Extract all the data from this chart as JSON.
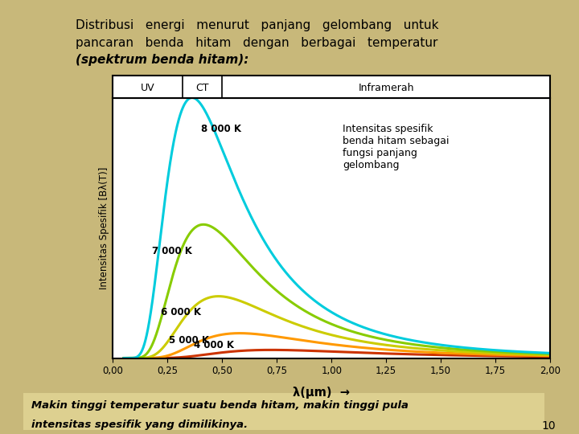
{
  "temperatures": [
    4000,
    5000,
    6000,
    7000,
    8000
  ],
  "colors": [
    "#cc3300",
    "#ff9900",
    "#cccc00",
    "#88cc00",
    "#00ccdd"
  ],
  "xlim": [
    0.0,
    2.0
  ],
  "ylim": [
    0.0,
    1.0
  ],
  "xticks": [
    0.0,
    0.25,
    0.5,
    0.75,
    1.0,
    1.25,
    1.5,
    1.75,
    2.0
  ],
  "xtick_labels": [
    "0,00",
    "0,25",
    "0,50",
    "0,75",
    "1,00",
    "1,25",
    "1,50",
    "1,75",
    "2,00"
  ],
  "uv_boundary": 0.32,
  "ct_boundary": 0.5,
  "uv_label": "UV",
  "ct_label": "CT",
  "ir_label": "Inframerah",
  "ylabel": "Intensitas Spesifik [Bλ(T)]",
  "xlabel_text": "λ(μm)",
  "annotation": "Intensitas spesifik\nbenda hitam sebagai\nfungsi panjang\ngelombang",
  "label_8000": "8 000 K",
  "label_7000": "7 000 K",
  "label_6000": "6 000 K",
  "label_5000": "5 000 K",
  "label_4000": "4 000 K",
  "bg_color": "#c8b87a",
  "plot_bg": "#ffffff",
  "bottom_text_line1": "Makin tinggi temperatur suatu benda hitam, makin tinggi pula",
  "bottom_text_line2": "intensitas spesifik yang dimilikinya.",
  "bottom_bg": "#ddd090",
  "page_number": "10",
  "title_line1": "Distribusi   energi   menurut   panjang   gelombang   untuk",
  "title_line2": "pancaran   benda   hitam   dengan   berbagai   temperatur",
  "title_line3_normal": "(spektrum benda hitam)",
  "title_line3_suffix": ":"
}
